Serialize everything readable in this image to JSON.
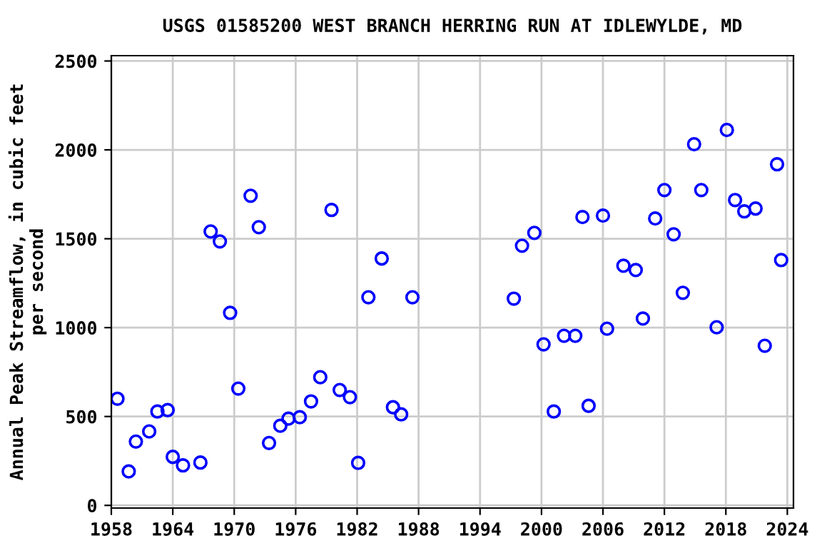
{
  "chart_data": {
    "type": "scatter",
    "title": "USGS 01585200 WEST BRANCH HERRING RUN AT IDLEWYLDE, MD",
    "ylabel": "Annual Peak Streamflow, in cubic feet\nper second",
    "x": [
      1958.6,
      1959.7,
      1960.4,
      1961.7,
      1962.5,
      1963.5,
      1964.0,
      1965.0,
      1966.7,
      1967.7,
      1968.6,
      1969.6,
      1970.4,
      1971.6,
      1972.4,
      1973.4,
      1974.5,
      1975.3,
      1976.4,
      1977.5,
      1978.4,
      1979.5,
      1980.3,
      1981.3,
      1982.1,
      1983.1,
      1984.4,
      1985.5,
      1986.3,
      1987.4,
      1997.3,
      1998.1,
      1999.3,
      2000.2,
      2001.2,
      2002.2,
      2003.3,
      2004.0,
      2004.6,
      2006.0,
      2006.4,
      2008.0,
      2009.2,
      2009.9,
      2011.1,
      2012.0,
      2012.9,
      2013.8,
      2014.9,
      2015.6,
      2017.1,
      2018.1,
      2018.9,
      2019.8,
      2020.9,
      2021.8,
      2023.0,
      2023.4
    ],
    "series": [
      {
        "color": "#0000ff",
        "values": [
          600,
          191,
          359,
          416,
          528,
          536,
          273,
          225,
          241,
          1541,
          1485,
          1083,
          657,
          1742,
          1565,
          351,
          448,
          488,
          496,
          585,
          721,
          1662,
          649,
          609,
          239,
          1171,
          1389,
          552,
          512,
          1171,
          1163,
          1461,
          1533,
          906,
          528,
          954,
          954,
          1622,
          560,
          1630,
          994,
          1348,
          1324,
          1051,
          1614,
          1774,
          1525,
          1196,
          2032,
          1774,
          1002,
          2112,
          1718,
          1654,
          1670,
          898,
          1919,
          1380
        ]
      }
    ],
    "xlim": [
      1958,
      2024.6
    ],
    "ylim": [
      -15,
      2530
    ],
    "xticks": [
      1958,
      1964,
      1970,
      1976,
      1982,
      1988,
      1994,
      2000,
      2006,
      2012,
      2018,
      2024
    ],
    "yticks": [
      0,
      500,
      1000,
      1500,
      2000,
      2500
    ],
    "grid": true,
    "marker": "circle"
  }
}
